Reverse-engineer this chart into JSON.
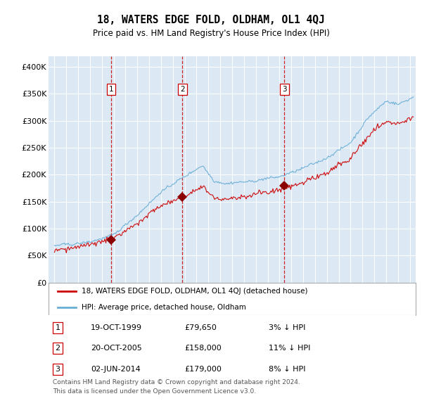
{
  "title": "18, WATERS EDGE FOLD, OLDHAM, OL1 4QJ",
  "subtitle": "Price paid vs. HM Land Registry's House Price Index (HPI)",
  "bg_color": "#dce9f5",
  "hpi_color": "#6aaed6",
  "price_color": "#cc0000",
  "marker_color": "#8b0000",
  "transactions": [
    {
      "num": 1,
      "date_str": "19-OCT-1999",
      "date_x": 1999.8,
      "price": 79650,
      "hpi_pct": "3% ↓ HPI"
    },
    {
      "num": 2,
      "date_str": "20-OCT-2005",
      "date_x": 2005.8,
      "price": 158000,
      "hpi_pct": "11% ↓ HPI"
    },
    {
      "num": 3,
      "date_str": "02-JUN-2014",
      "date_x": 2014.42,
      "price": 179000,
      "hpi_pct": "8% ↓ HPI"
    }
  ],
  "vline_color": "#cc0000",
  "label_legend_1": "18, WATERS EDGE FOLD, OLDHAM, OL1 4QJ (detached house)",
  "label_legend_2": "HPI: Average price, detached house, Oldham",
  "footer": "Contains HM Land Registry data © Crown copyright and database right 2024.\nThis data is licensed under the Open Government Licence v3.0.",
  "ylim": [
    0,
    420000
  ],
  "xlim_start": 1994.5,
  "xlim_end": 2025.5,
  "yticks": [
    0,
    50000,
    100000,
    150000,
    200000,
    250000,
    300000,
    350000,
    400000
  ],
  "ytick_labels": [
    "£0",
    "£50K",
    "£100K",
    "£150K",
    "£200K",
    "£250K",
    "£300K",
    "£350K",
    "£400K"
  ],
  "xticks": [
    1995,
    1996,
    1997,
    1998,
    1999,
    2000,
    2001,
    2002,
    2003,
    2004,
    2005,
    2006,
    2007,
    2008,
    2009,
    2010,
    2011,
    2012,
    2013,
    2014,
    2015,
    2016,
    2017,
    2018,
    2019,
    2020,
    2021,
    2022,
    2023,
    2024,
    2025
  ]
}
